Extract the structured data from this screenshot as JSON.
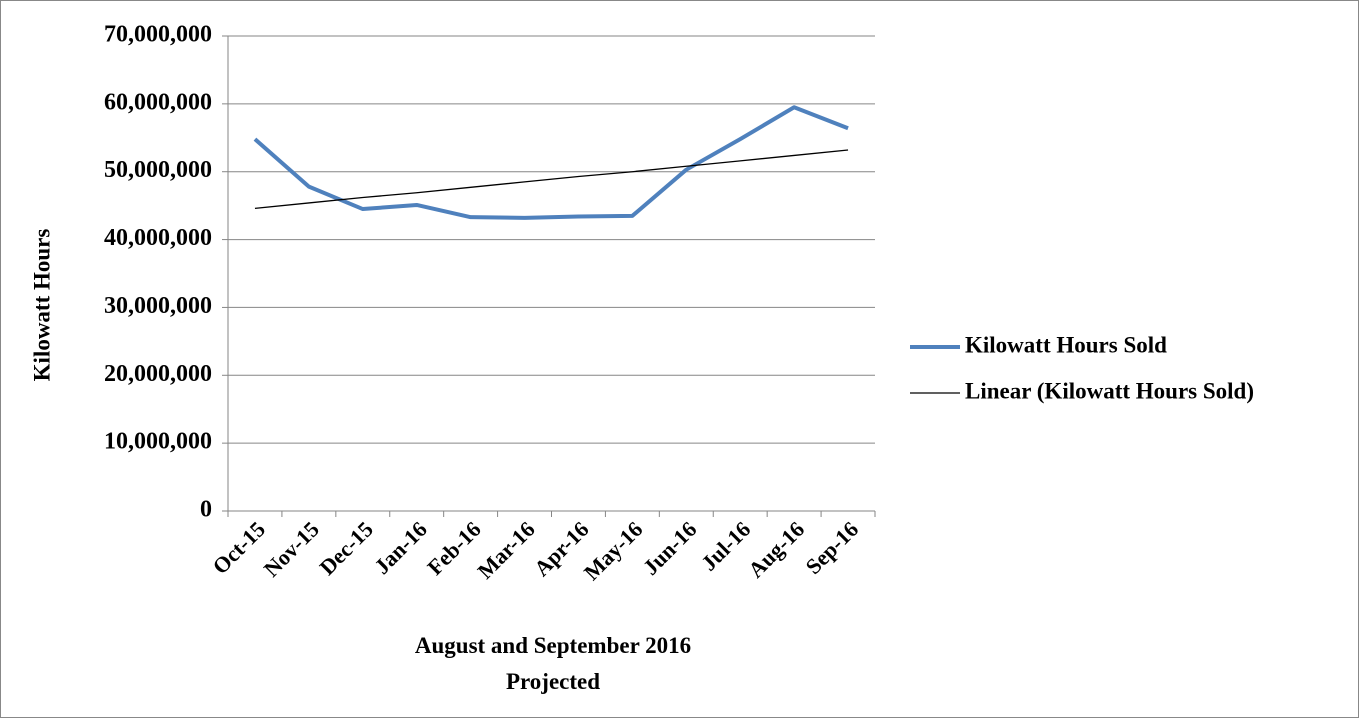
{
  "chart_data": {
    "type": "line",
    "ylabel": "Kilowatt Hours",
    "xlabel": [
      "August and September 2016",
      "Projected"
    ],
    "categories": [
      "Oct-15",
      "Nov-15",
      "Dec-15",
      "Jan-16",
      "Feb-16",
      "Mar-16",
      "Apr-16",
      "May-16",
      "Jun-16",
      "Jul-16",
      "Aug-16",
      "Sep-16"
    ],
    "series": [
      {
        "name": "Kilowatt Hours Sold",
        "color": "#4f81bd",
        "width": 4,
        "values": [
          54800000,
          47800000,
          44500000,
          45100000,
          43300000,
          43200000,
          43400000,
          43500000,
          50300000,
          54800000,
          59500000,
          56400000
        ]
      },
      {
        "name": "Linear (Kilowatt Hours Sold)",
        "color": "#000000",
        "width": 1.3,
        "values": [
          44600000,
          45400000,
          46200000,
          46900000,
          47700000,
          48500000,
          49300000,
          50000000,
          50800000,
          51600000,
          52400000,
          53200000
        ]
      }
    ],
    "ylim": [
      0,
      70000000
    ],
    "yticks": [
      0,
      {
        "value": 10000000,
        "label": "10,000,000"
      },
      {
        "value": 20000000,
        "label": "20,000,000"
      },
      {
        "value": 30000000,
        "label": "30,000,000"
      },
      {
        "value": 40000000,
        "label": "40,000,000"
      },
      {
        "value": 50000000,
        "label": "50,000,000"
      },
      {
        "value": 60000000,
        "label": "60,000,000"
      },
      {
        "value": 70000000,
        "label": "70,000,000"
      }
    ],
    "grid": true,
    "legend": "right"
  }
}
